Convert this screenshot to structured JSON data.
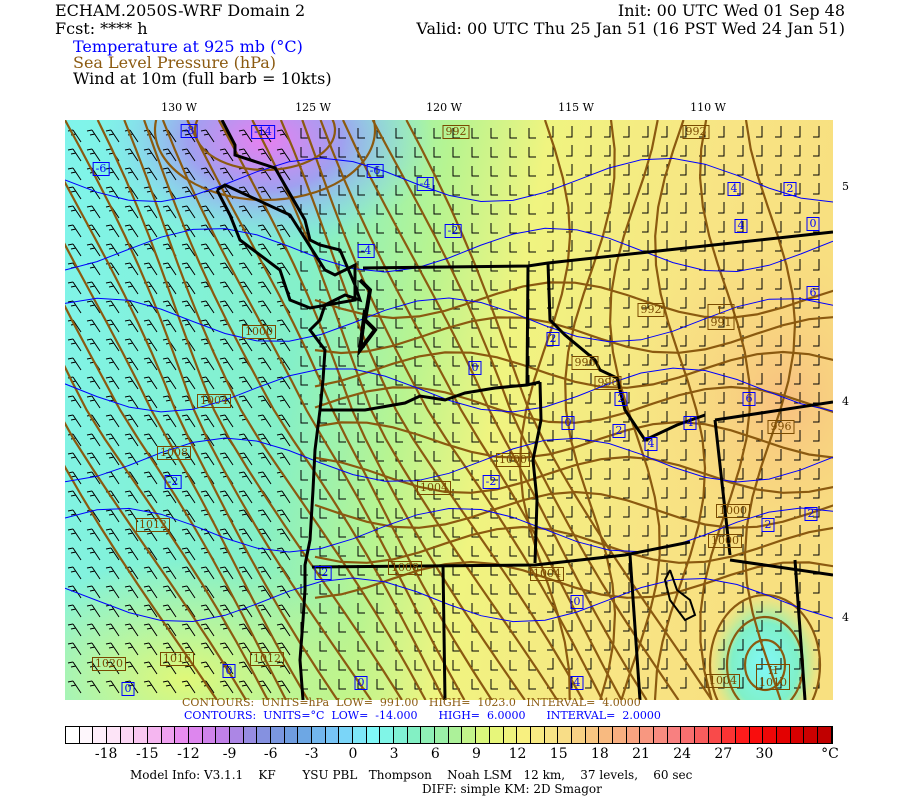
{
  "header": {
    "title": "ECHAM.2050S-WRF Domain 2",
    "init": "Init: 00 UTC Wed 01 Sep 48",
    "fcst": "Fcst: **** h",
    "valid": "Valid: 00 UTC Thu 25 Jan 51 (16 PST Wed 24 Jan 51)",
    "field_temp": "Temperature at 925 mb (°C)",
    "field_slp": "Sea Level Pressure (hPa)",
    "field_wind": "Wind at 10m (full barb = 10kts)"
  },
  "axes": {
    "lon_labels": [
      "130 W",
      "125 W",
      "120 W",
      "115 W",
      "110 W"
    ],
    "lat_labels": [
      "5",
      "4",
      "4"
    ]
  },
  "map": {
    "temp_labels": [
      "-8",
      "-14",
      "-6",
      "-6",
      "-4",
      "-2",
      "-4",
      "0",
      "0",
      "-2",
      "-2",
      "-2",
      "0",
      "0",
      "4",
      "4",
      "2",
      "4",
      "0",
      "6",
      "2",
      "2",
      "2",
      "4",
      "6",
      "4",
      "2",
      "2",
      "0",
      "0"
    ],
    "pressure_labels": [
      "992",
      "992",
      "1000",
      "1004",
      "1008",
      "1012",
      "1020",
      "1016",
      "1012",
      "992",
      "L\n991",
      "996",
      "996",
      "1000",
      "1004",
      "1000",
      "1000",
      "996",
      "1008",
      "1004",
      "1004",
      "H\n1010"
    ],
    "colors": {
      "temp_contour": "#0000ff",
      "slp_contour": "#8b5a10",
      "border": "#000000"
    }
  },
  "slp_contour_info": "CONTOURS:  UNITS=hPa  LOW=  991.00   HIGH=  1023.0   INTERVAL=  4.0000",
  "temp_contour_info": "CONTOURS:  UNITS=°C  LOW=  -14.000      HIGH=  6.0000      INTERVAL=  2.0000",
  "colorbar": {
    "range": [
      -21,
      35
    ],
    "tick_labels": [
      "-18",
      "-15",
      "-12",
      "-9",
      "-6",
      "-3",
      "0",
      "3",
      "6",
      "9",
      "12",
      "15",
      "18",
      "21",
      "24",
      "27",
      "30"
    ],
    "unit": "°C",
    "color_stops": [
      "#ffffff",
      "#fde8f8",
      "#f8c0f0",
      "#e888f0",
      "#c080e8",
      "#8890e0",
      "#6aa0e0",
      "#78c8f8",
      "#80f8f8",
      "#80f0c8",
      "#a0f0a0",
      "#e0f878",
      "#f8f080",
      "#f8e088",
      "#f8c080",
      "#f8a080",
      "#f88080",
      "#f85050",
      "#ff1010",
      "#e00000",
      "#c00000"
    ]
  },
  "footer": {
    "model_info": "Model Info: V3.1.1    KF       YSU PBL   Thompson    Noah LSM   12 km,    37 levels,    60 sec",
    "diff": "DIFF: simple KM: 2D Smagor"
  }
}
